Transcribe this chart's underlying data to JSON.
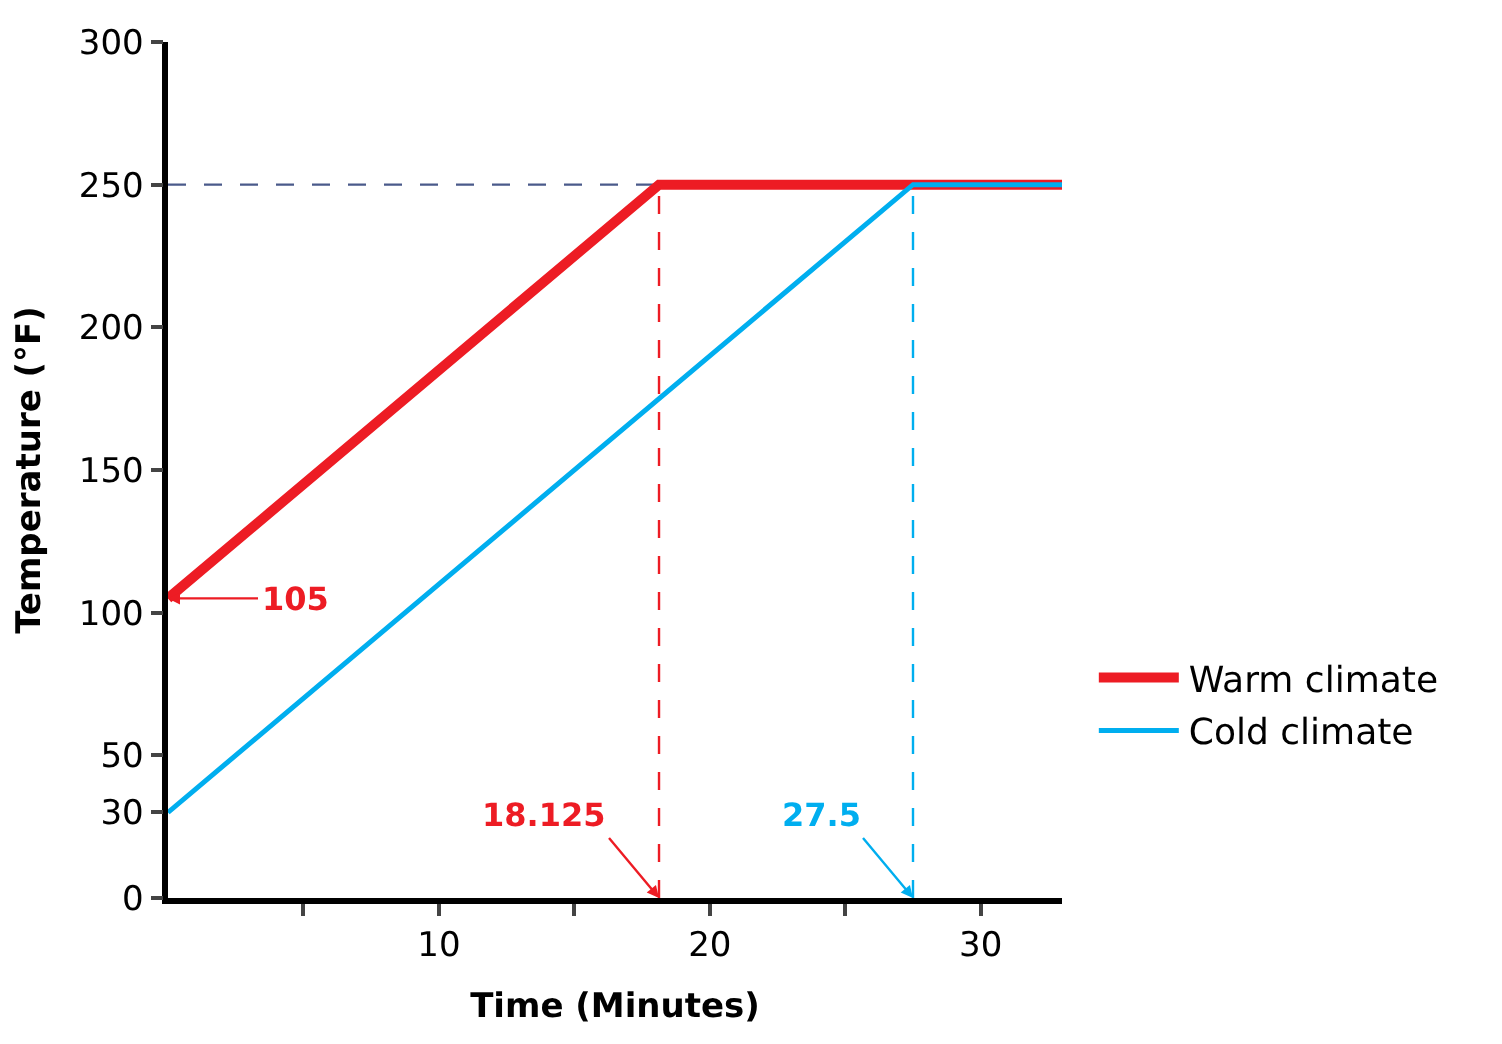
{
  "chart_data": {
    "type": "line",
    "xlabel": "Time (Minutes)",
    "ylabel": "Temperature (°F)",
    "xlim": [
      0,
      33
    ],
    "ylim": [
      0,
      300
    ],
    "xticks": [
      {
        "value": 5,
        "label": null
      },
      10,
      {
        "value": 15,
        "label": null
      },
      20,
      {
        "value": 25,
        "label": null
      },
      30
    ],
    "yticks": [
      0,
      30,
      50,
      100,
      150,
      200,
      250,
      300
    ],
    "series": [
      {
        "name": "Warm climate",
        "color": "#ed1c24",
        "x": [
          0,
          18.125,
          33
        ],
        "values": [
          105,
          250,
          250
        ]
      },
      {
        "name": "Cold climate",
        "color": "#00aeef",
        "x": [
          0,
          27.5,
          33
        ],
        "values": [
          30,
          250,
          250
        ]
      }
    ],
    "ref_lines": [
      {
        "axis": "y",
        "value": 250,
        "color": "#4a5a8a",
        "line_style": "dashed"
      },
      {
        "axis": "x",
        "value": 18.125,
        "color": "#ed1c24",
        "line_style": "dashed"
      },
      {
        "axis": "x",
        "value": 27.5,
        "color": "#00aeef",
        "line_style": "dashed"
      }
    ],
    "annotations": [
      {
        "text": "105",
        "x": 0,
        "y": 105
      },
      {
        "text": "18.125",
        "x": 18.125,
        "y": 0
      },
      {
        "text": "27.5",
        "x": 27.5,
        "y": 0
      }
    ],
    "grid": false,
    "legend": "right",
    "marker": "none",
    "line_style": "solid"
  }
}
